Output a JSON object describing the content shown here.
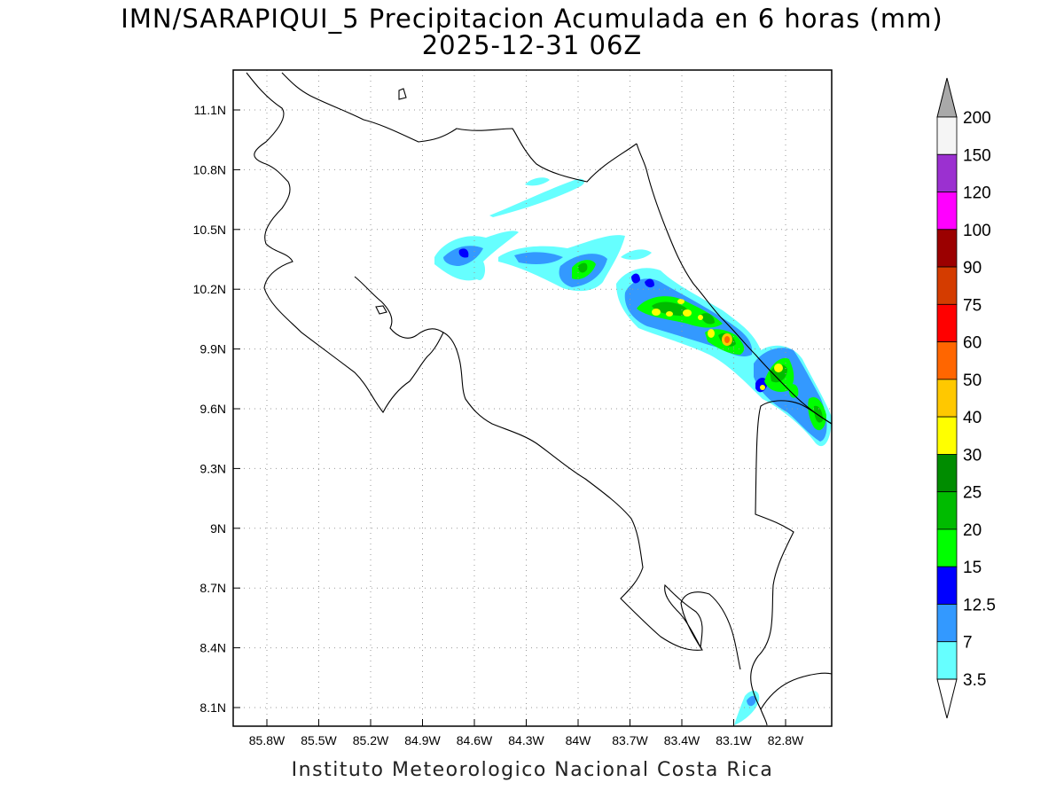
{
  "header": {
    "title": "IMN/SARAPIQUI_5 Precipitacion Acumulada en 6 horas (mm)",
    "subtitle": "2025-12-31 06Z"
  },
  "map": {
    "lat_labels": [
      "11.1N",
      "10.8N",
      "10.5N",
      "10.2N",
      "9.9N",
      "9.6N",
      "9.3N",
      "9N",
      "8.7N",
      "8.4N",
      "8.1N"
    ],
    "lon_labels": [
      "85.8W",
      "85.5W",
      "85.2W",
      "84.9W",
      "84.6W",
      "84.3W",
      "84W",
      "83.7W",
      "83.4W",
      "83.1W",
      "82.8W"
    ],
    "region": "Costa Rica"
  },
  "colorbar": {
    "levels": [
      "200",
      "150",
      "120",
      "100",
      "90",
      "75",
      "60",
      "50",
      "40",
      "30",
      "25",
      "20",
      "15",
      "12.5",
      "7",
      "3.5"
    ],
    "colors": [
      "#f5f5f5",
      "#9b30d0",
      "#ff00ff",
      "#9b0000",
      "#d43c00",
      "#ff0000",
      "#ff6600",
      "#ffc800",
      "#ffff00",
      "#008c00",
      "#00bb00",
      "#00ff00",
      "#0000ff",
      "#3399ff",
      "#66ffff"
    ],
    "top_arrow_color": "#a9a9a9",
    "bottom_arrow_color": "#ffffff"
  },
  "footer": {
    "credit": "Instituto Meteorologico Nacional Costa Rica"
  }
}
